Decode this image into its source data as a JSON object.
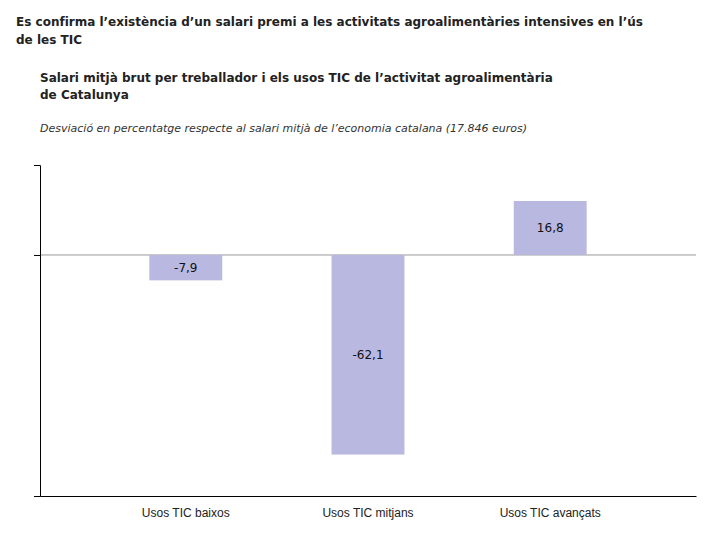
{
  "chart_data": {
    "type": "bar",
    "title": "Es confirma l’existència d’un salari premi a les activitats agroalimentàries intensives en l’ús\nde les TIC",
    "subtitle": "Salari mitjà brut per treballador i els usos TIC de l’activitat agroalimentària\nde Catalunya",
    "annotations": [
      "Desviació en percentatge respecte al salari mitjà de l’economia catalana (17.846 euros)"
    ],
    "categories": [
      "Usos TIC baixos",
      "Usos TIC mitjans",
      "Usos TIC avançats"
    ],
    "values": [
      -7.9,
      -62.1,
      16.8
    ],
    "value_labels": [
      "-7,9",
      "-62,1",
      "16,8"
    ],
    "data_labels": true,
    "color": "#b8b8e0",
    "ylim": [
      -75,
      28
    ],
    "yticks": [
      0
    ],
    "grid": true,
    "tick_labels": "x"
  }
}
